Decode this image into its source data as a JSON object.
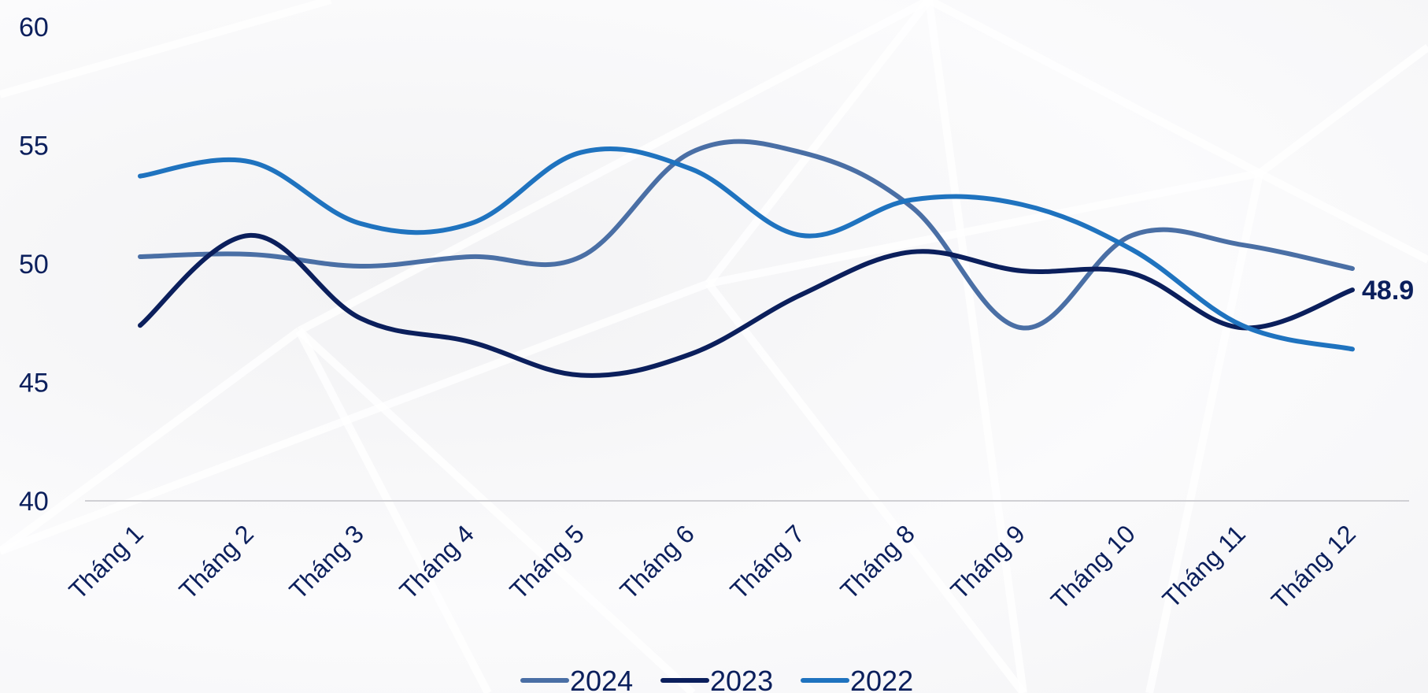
{
  "chart_data": {
    "type": "line",
    "categories": [
      "Tháng 1",
      "Tháng 2",
      "Tháng 3",
      "Tháng 4",
      "Tháng 5",
      "Tháng 6",
      "Tháng 7",
      "Tháng 8",
      "Tháng 9",
      "Tháng 10",
      "Tháng 11",
      "Tháng 12"
    ],
    "series": [
      {
        "name": "2024",
        "color": "#4a6fa5",
        "values": [
          50.3,
          50.4,
          49.9,
          50.3,
          50.3,
          54.7,
          54.7,
          52.4,
          47.3,
          51.2,
          50.8,
          49.8
        ]
      },
      {
        "name": "2023",
        "color": "#0b1f5c",
        "values": [
          47.4,
          51.2,
          47.7,
          46.7,
          45.3,
          46.2,
          48.7,
          50.5,
          49.7,
          49.6,
          47.3,
          48.9
        ]
      },
      {
        "name": "2022",
        "color": "#1f73bf",
        "values": [
          53.7,
          54.3,
          51.7,
          51.7,
          54.7,
          54.0,
          51.2,
          52.7,
          52.5,
          50.6,
          47.4,
          46.4
        ]
      }
    ],
    "data_labels": [
      {
        "series": "2023",
        "category": "Tháng 12",
        "text": "48.9"
      }
    ],
    "y_ticks": [
      "40",
      "45",
      "50",
      "55",
      "60"
    ],
    "ylim": [
      40,
      60
    ],
    "legend_position": "bottom",
    "grid": false
  }
}
